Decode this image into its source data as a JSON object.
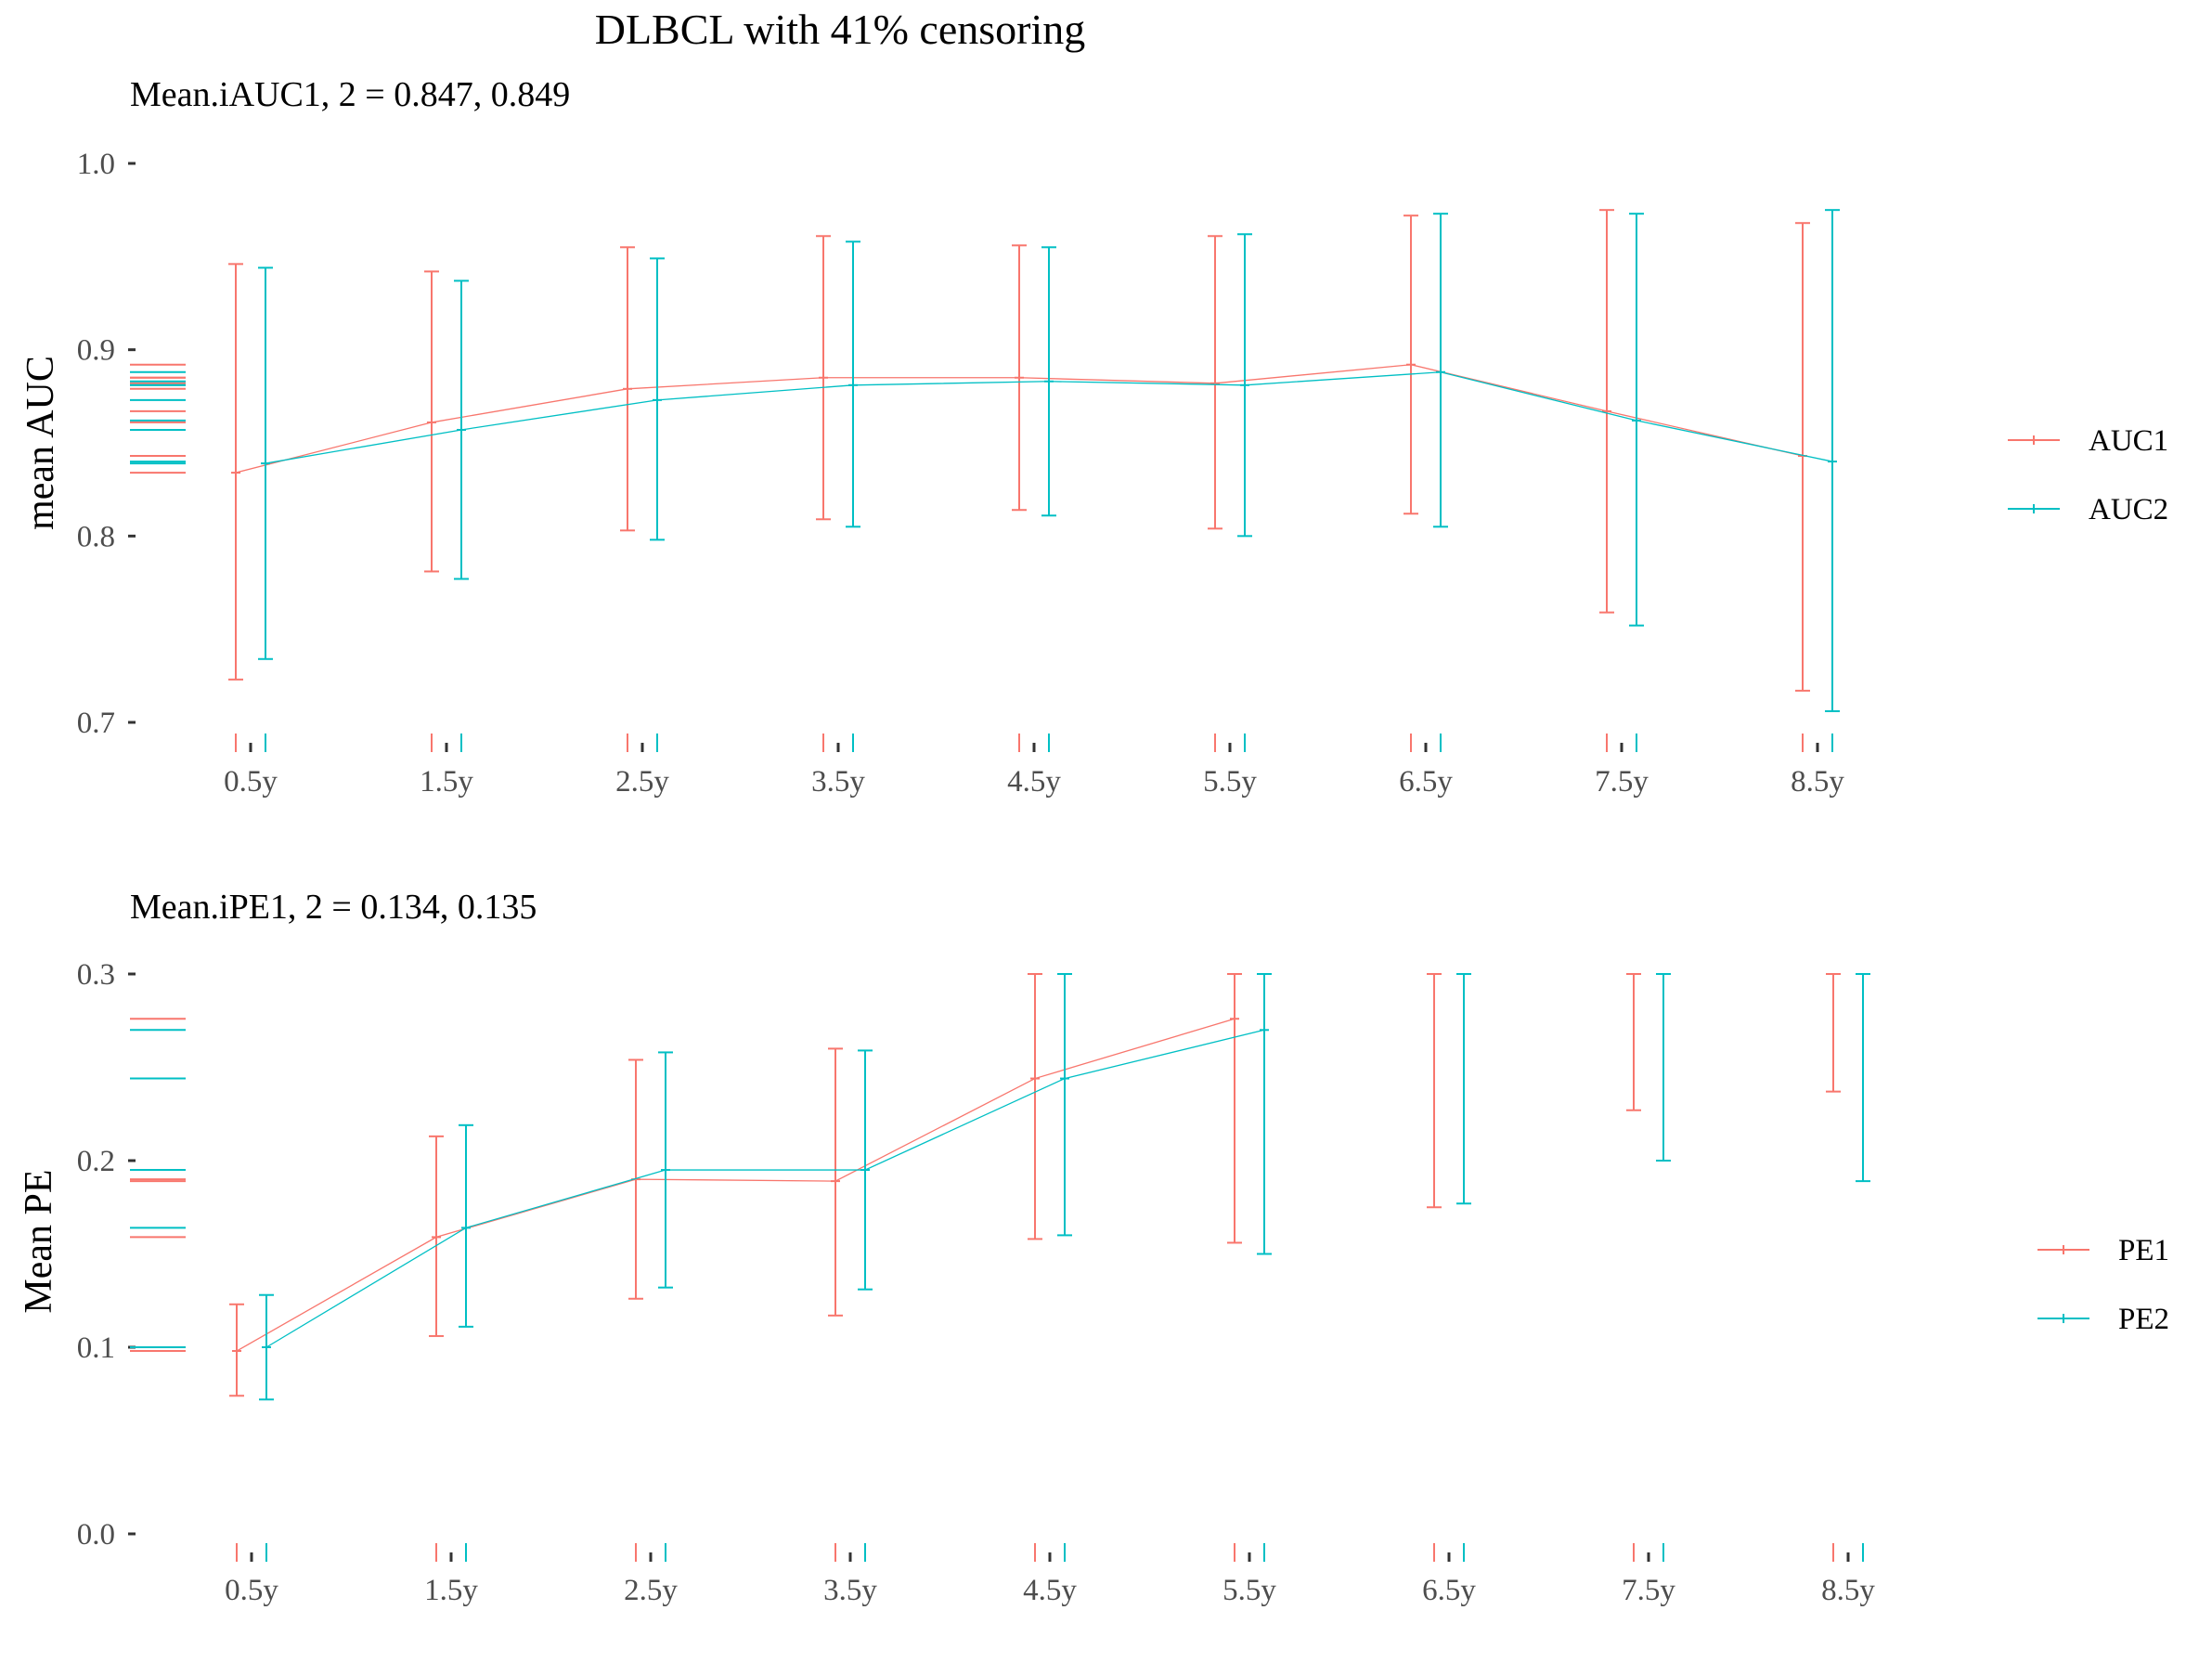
{
  "title": "DLBCL with 41% censoring",
  "colors": {
    "series1": "#F8766D",
    "series2": "#00BFC4",
    "axis": "#333333",
    "text": "#4d4d4d"
  },
  "chart_data": [
    {
      "type": "line",
      "subtitle": "Mean.iAUC1, 2 =  0.847, 0.849",
      "ylabel": "mean AUC",
      "xlabel": "",
      "categories": [
        "0.5y",
        "1.5y",
        "2.5y",
        "3.5y",
        "4.5y",
        "5.5y",
        "6.5y",
        "7.5y",
        "8.5y"
      ],
      "ylim": [
        0.7,
        1.0
      ],
      "yticks": [
        0.7,
        0.8,
        0.9,
        1.0
      ],
      "ytick_labels": [
        "0.7",
        "0.8",
        "0.9",
        "1.0"
      ],
      "grid": false,
      "legend_position": "right",
      "series": [
        {
          "name": "AUC1",
          "values": [
            0.834,
            0.861,
            0.879,
            0.885,
            0.885,
            0.882,
            0.892,
            0.867,
            0.843
          ],
          "lower": [
            0.723,
            0.781,
            0.803,
            0.809,
            0.814,
            0.804,
            0.812,
            0.759,
            0.717
          ],
          "upper": [
            0.946,
            0.942,
            0.955,
            0.961,
            0.956,
            0.961,
            0.972,
            0.975,
            0.968
          ]
        },
        {
          "name": "AUC2",
          "values": [
            0.839,
            0.857,
            0.873,
            0.881,
            0.883,
            0.881,
            0.888,
            0.862,
            0.84
          ],
          "lower": [
            0.734,
            0.777,
            0.798,
            0.805,
            0.811,
            0.8,
            0.805,
            0.752,
            0.706
          ],
          "upper": [
            0.944,
            0.937,
            0.949,
            0.958,
            0.955,
            0.962,
            0.973,
            0.973,
            0.975
          ]
        }
      ]
    },
    {
      "type": "line",
      "subtitle": "Mean.iPE1, 2 =  0.134, 0.135",
      "ylabel": "Mean PE",
      "xlabel": "",
      "categories": [
        "0.5y",
        "1.5y",
        "2.5y",
        "3.5y",
        "4.5y",
        "5.5y",
        "6.5y",
        "7.5y",
        "8.5y"
      ],
      "ylim": [
        0.0,
        0.3
      ],
      "yticks": [
        0.0,
        0.1,
        0.2,
        0.3
      ],
      "ytick_labels": [
        "0.0",
        "0.1",
        "0.2",
        "0.3"
      ],
      "grid": false,
      "legend_position": "right",
      "series": [
        {
          "name": "PE1",
          "values": [
            0.098,
            0.159,
            0.19,
            0.189,
            0.244,
            0.276,
            null,
            null,
            null
          ],
          "lower": [
            0.074,
            0.106,
            0.126,
            0.117,
            0.158,
            0.156,
            0.175,
            0.227,
            0.237
          ],
          "upper": [
            0.123,
            0.213,
            0.254,
            0.26,
            0.3,
            0.3,
            0.3,
            0.3,
            0.3
          ]
        },
        {
          "name": "PE2",
          "values": [
            0.1,
            0.164,
            0.195,
            0.195,
            0.244,
            0.27,
            null,
            null,
            null
          ],
          "lower": [
            0.072,
            0.111,
            0.132,
            0.131,
            0.16,
            0.15,
            0.177,
            0.2,
            0.189
          ],
          "upper": [
            0.128,
            0.219,
            0.258,
            0.259,
            0.3,
            0.3,
            0.3,
            0.3,
            0.3
          ]
        }
      ]
    }
  ]
}
